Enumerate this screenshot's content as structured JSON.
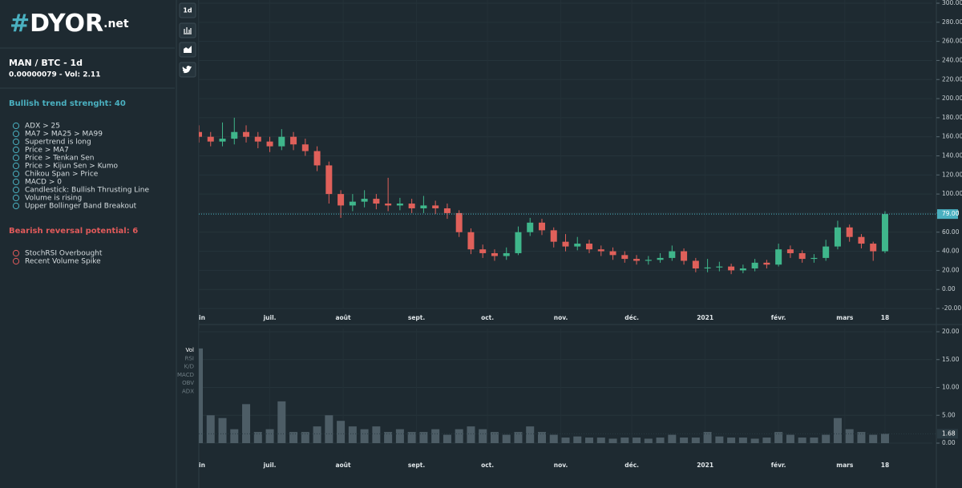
{
  "logo": {
    "hash": "#",
    "name": "DYOR",
    "suffix": ".net"
  },
  "pair": {
    "title": "MAN / BTC - 1d",
    "subtitle": "0.00000079 - Vol: 2.11"
  },
  "bullish": {
    "title": "Bullish trend strenght: 40",
    "color": "#4ab0c0",
    "items": [
      "ADX > 25",
      "MA7 > MA25 > MA99",
      "Supertrend is long",
      "Price > MA7",
      "Price > Tenkan Sen",
      "Price > Kijun Sen > Kumo",
      "Chikou Span > Price",
      "MACD > 0",
      "Candlestick: Bullish Thrusting Line",
      "Volume is rising",
      "Upper Bollinger Band Breakout"
    ]
  },
  "bearish": {
    "title": "Bearish reversal potential: 6",
    "color": "#e05a5a",
    "items": [
      "StochRSI Overbought",
      "Recent Volume Spike"
    ]
  },
  "toolbar": {
    "interval": "1d"
  },
  "indicators": [
    "Vol",
    "RSI",
    "K/D",
    "MACD",
    "OBV",
    "ADX"
  ],
  "chart_data": [
    {
      "type": "candlestick",
      "up_color": "#3fb68b",
      "down_color": "#e0605a",
      "grid": true,
      "x": [
        0,
        5,
        10,
        15,
        20,
        25,
        30,
        35,
        40,
        45,
        50,
        55,
        60,
        65,
        70,
        75,
        80,
        85,
        90,
        95,
        100,
        105,
        110,
        115,
        120,
        125,
        130,
        135,
        140,
        145,
        150,
        155,
        160,
        165,
        170,
        175,
        180,
        185,
        190,
        195,
        200,
        205,
        210,
        215,
        220,
        225,
        230,
        235,
        240,
        245,
        250,
        255,
        260,
        265,
        270,
        275,
        280,
        285,
        290
      ],
      "open": [
        165,
        160,
        155,
        158,
        165,
        160,
        155,
        150,
        160,
        152,
        145,
        130,
        100,
        88,
        92,
        95,
        90,
        88,
        90,
        85,
        88,
        85,
        80,
        60,
        42,
        38,
        35,
        38,
        60,
        70,
        62,
        50,
        45,
        48,
        42,
        40,
        36,
        32,
        30,
        31,
        33,
        40,
        30,
        22,
        23,
        24,
        20,
        22,
        28,
        26,
        42,
        38,
        32,
        33,
        45,
        65,
        55,
        48,
        40
      ],
      "high": [
        172,
        165,
        175,
        180,
        172,
        165,
        160,
        168,
        165,
        158,
        150,
        134,
        104,
        100,
        104,
        100,
        117,
        96,
        95,
        98,
        93,
        90,
        83,
        64,
        47,
        42,
        44,
        66,
        75,
        74,
        65,
        58,
        55,
        52,
        46,
        44,
        40,
        36,
        35,
        38,
        46,
        43,
        33,
        32,
        29,
        27,
        26,
        32,
        31,
        48,
        46,
        41,
        37,
        52,
        72,
        68,
        58,
        50,
        82
      ],
      "low": [
        154,
        150,
        150,
        152,
        154,
        148,
        144,
        146,
        146,
        140,
        124,
        90,
        75,
        82,
        86,
        84,
        82,
        83,
        80,
        80,
        79,
        74,
        55,
        37,
        33,
        30,
        31,
        36,
        56,
        57,
        44,
        40,
        41,
        38,
        35,
        31,
        28,
        26,
        26,
        28,
        30,
        26,
        18,
        18,
        19,
        16,
        17,
        19,
        22,
        24,
        33,
        28,
        28,
        30,
        42,
        50,
        43,
        30,
        38
      ],
      "close": [
        160,
        155,
        158,
        165,
        160,
        155,
        150,
        160,
        152,
        145,
        130,
        100,
        88,
        92,
        95,
        90,
        88,
        90,
        85,
        88,
        85,
        80,
        60,
        42,
        38,
        35,
        38,
        60,
        70,
        62,
        50,
        45,
        48,
        42,
        40,
        36,
        32,
        30,
        31,
        33,
        40,
        30,
        22,
        23,
        24,
        20,
        22,
        28,
        26,
        42,
        38,
        32,
        33,
        45,
        65,
        55,
        48,
        40,
        79
      ],
      "xlim": [
        0,
        310
      ],
      "xticks": [
        {
          "value": 0,
          "label": "juin"
        },
        {
          "value": 30,
          "label": "juil."
        },
        {
          "value": 61,
          "label": "août"
        },
        {
          "value": 92,
          "label": "sept."
        },
        {
          "value": 122,
          "label": "oct."
        },
        {
          "value": 153,
          "label": "nov."
        },
        {
          "value": 183,
          "label": "déc."
        },
        {
          "value": 214,
          "label": "2021"
        },
        {
          "value": 245,
          "label": "févr."
        },
        {
          "value": 273,
          "label": "mars"
        },
        {
          "value": 290,
          "label": "18"
        }
      ],
      "ylim": [
        -20,
        300
      ],
      "yticks": [
        {
          "value": -20,
          "label": "-20.00"
        },
        {
          "value": 0,
          "label": "0.00"
        },
        {
          "value": 20,
          "label": "20.00"
        },
        {
          "value": 40,
          "label": "40.00"
        },
        {
          "value": 60,
          "label": "60.00"
        },
        {
          "value": 80,
          "label": "80.00"
        },
        {
          "value": 100,
          "label": "100.00"
        },
        {
          "value": 120,
          "label": "120.00"
        },
        {
          "value": 140,
          "label": "140.00"
        },
        {
          "value": 160,
          "label": "160.00"
        },
        {
          "value": 180,
          "label": "180.00"
        },
        {
          "value": 200,
          "label": "200.00"
        },
        {
          "value": 220,
          "label": "220.00"
        },
        {
          "value": 240,
          "label": "240.00"
        },
        {
          "value": 260,
          "label": "260.00"
        },
        {
          "value": 280,
          "label": "280.00"
        },
        {
          "value": 300,
          "label": "300.00"
        }
      ],
      "last": {
        "value": 79,
        "label": "79.00",
        "color": "#4ab0c0"
      }
    },
    {
      "type": "bar",
      "color": "#4d5d66",
      "grid": true,
      "x": [
        0,
        5,
        10,
        15,
        20,
        25,
        30,
        35,
        40,
        45,
        50,
        55,
        60,
        65,
        70,
        75,
        80,
        85,
        90,
        95,
        100,
        105,
        110,
        115,
        120,
        125,
        130,
        135,
        140,
        145,
        150,
        155,
        160,
        165,
        170,
        175,
        180,
        185,
        190,
        195,
        200,
        205,
        210,
        215,
        220,
        225,
        230,
        235,
        240,
        245,
        250,
        255,
        260,
        265,
        270,
        275,
        280,
        285,
        290
      ],
      "values": [
        17,
        5,
        4.5,
        2.5,
        7,
        2,
        2.5,
        7.5,
        2,
        2,
        3,
        5,
        4,
        3,
        2.5,
        3,
        2,
        2.5,
        2,
        2,
        2.5,
        1.5,
        2.5,
        3,
        2.5,
        2,
        1.5,
        2,
        3,
        2,
        1.5,
        1,
        1.2,
        1,
        1,
        0.8,
        1,
        1,
        0.8,
        1,
        1.5,
        1,
        1,
        2,
        1.2,
        1,
        1,
        0.8,
        1,
        2,
        1.5,
        1,
        1,
        1.5,
        4.5,
        2.5,
        2,
        1.5,
        1.68
      ],
      "xlim": [
        0,
        310
      ],
      "xticks": [
        {
          "value": 0,
          "label": "juin"
        },
        {
          "value": 30,
          "label": "juil."
        },
        {
          "value": 61,
          "label": "août"
        },
        {
          "value": 92,
          "label": "sept."
        },
        {
          "value": 122,
          "label": "oct."
        },
        {
          "value": 153,
          "label": "nov."
        },
        {
          "value": 183,
          "label": "déc."
        },
        {
          "value": 214,
          "label": "2021"
        },
        {
          "value": 245,
          "label": "févr."
        },
        {
          "value": 273,
          "label": "mars"
        },
        {
          "value": 290,
          "label": "18"
        }
      ],
      "ylim": [
        0,
        20
      ],
      "yticks": [
        {
          "value": 0,
          "label": "0.00"
        },
        {
          "value": 5,
          "label": "5.00"
        },
        {
          "value": 10,
          "label": "10.00"
        },
        {
          "value": 15,
          "label": "15.00"
        },
        {
          "value": 20,
          "label": "20.00"
        }
      ],
      "last": {
        "value": 1.68,
        "label": "1.68",
        "color": "#2a3a42"
      }
    }
  ]
}
